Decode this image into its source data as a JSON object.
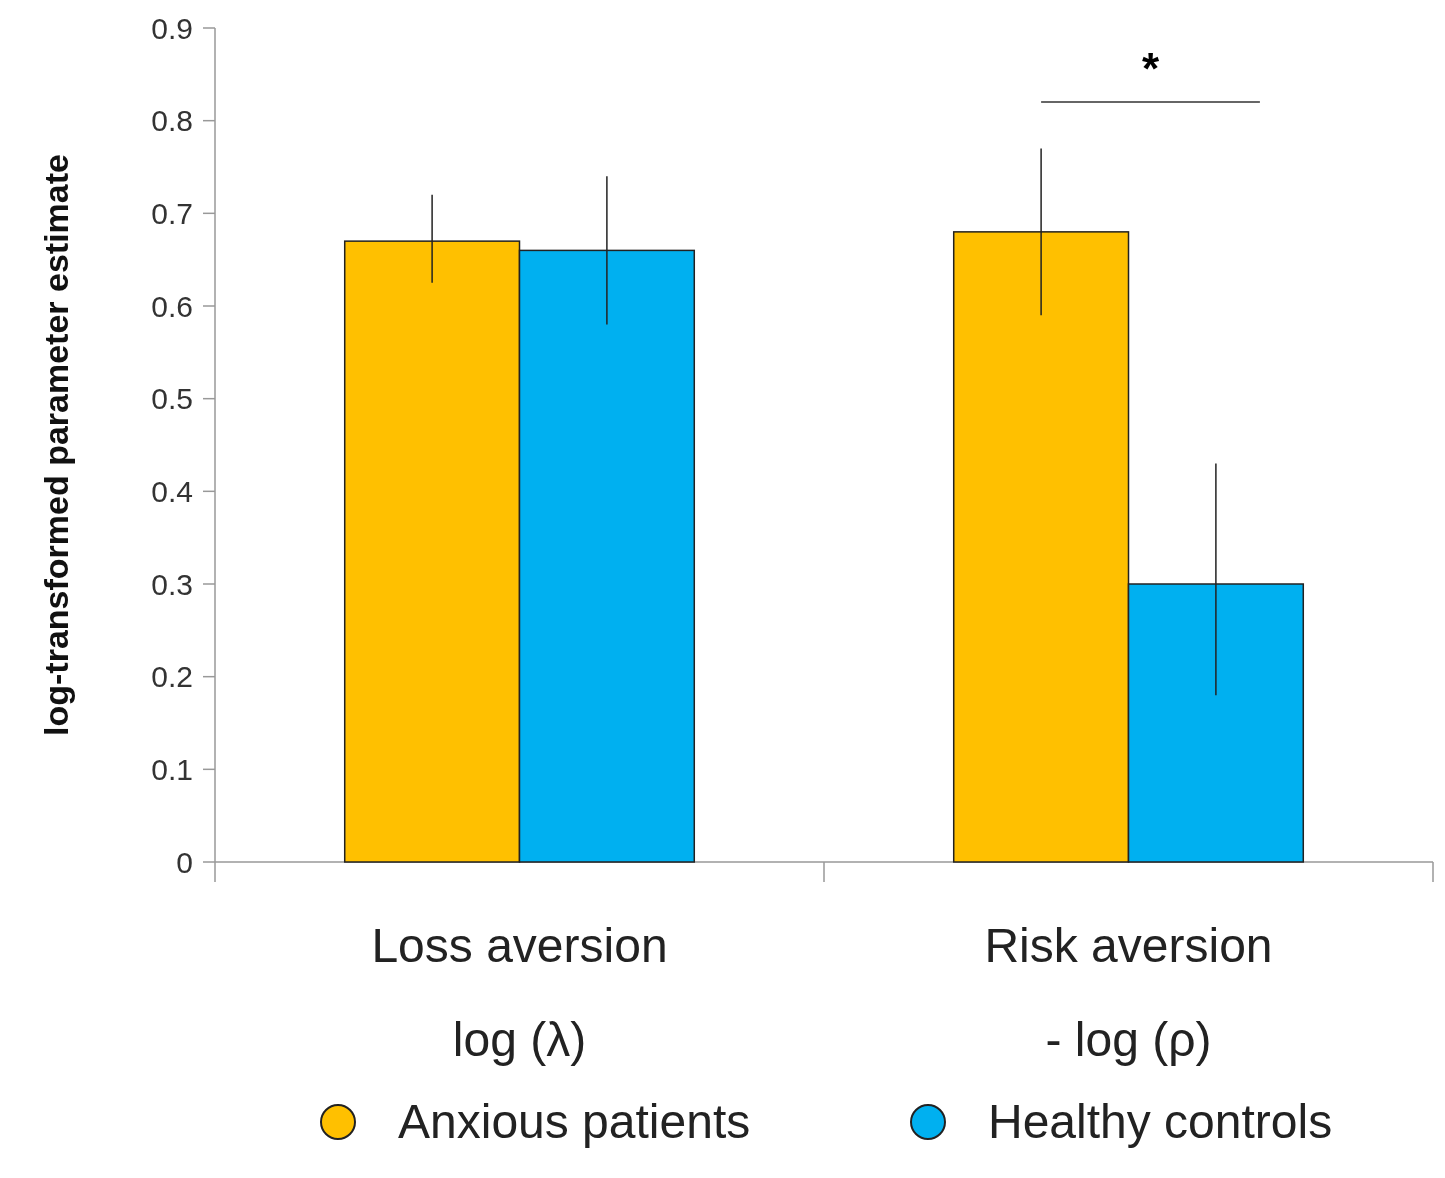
{
  "chart_data": {
    "type": "bar",
    "ylabel": "log-transformed parameter estimate",
    "categories": [
      "Loss aversion\nlog (λ)",
      "Risk aversion\n- log (ρ)"
    ],
    "series": [
      {
        "name": "Anxious patients",
        "color": "#ffc000",
        "values": [
          0.67,
          0.68
        ],
        "errors": [
          [
            0.625,
            0.72
          ],
          [
            0.59,
            0.77
          ]
        ]
      },
      {
        "name": "Healthy controls",
        "color": "#00b0f0",
        "values": [
          0.66,
          0.3
        ],
        "errors": [
          [
            0.58,
            0.74
          ],
          [
            0.18,
            0.43
          ]
        ]
      }
    ],
    "ylim": [
      0,
      0.9
    ],
    "yticks": [
      0,
      0.1,
      0.2,
      0.3,
      0.4,
      0.5,
      0.6,
      0.7,
      0.8,
      0.9
    ],
    "annotations": [
      "*"
    ],
    "legend": "bottom",
    "grid": false
  }
}
